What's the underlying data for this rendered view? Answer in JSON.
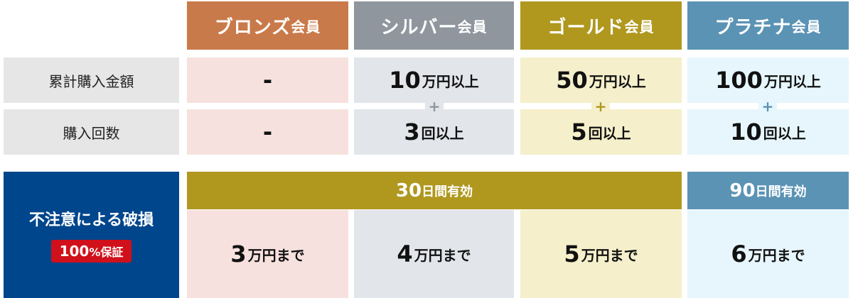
{
  "tiers": [
    {
      "name": "ブロンズ",
      "suffix": "会員",
      "header_color": "#C97A4A",
      "bg": "#F7E1DE",
      "amount_num": "-",
      "amount_unit": "",
      "count_num": "-",
      "count_unit": "",
      "limit_num": "3",
      "limit_unit": "万円まで"
    },
    {
      "name": "シルバー",
      "suffix": "会員",
      "header_color": "#8F969E",
      "bg": "#E2E5EA",
      "amount_num": "10",
      "amount_unit": "万円以上",
      "count_num": "3",
      "count_unit": "回以上",
      "limit_num": "4",
      "limit_unit": "万円まで",
      "plus_color": "#8F969E"
    },
    {
      "name": "ゴールド",
      "suffix": "会員",
      "header_color": "#B0981F",
      "bg": "#F5EFCB",
      "amount_num": "50",
      "amount_unit": "万円以上",
      "count_num": "5",
      "count_unit": "回以上",
      "limit_num": "5",
      "limit_unit": "万円まで",
      "plus_color": "#B0981F"
    },
    {
      "name": "プラチナ",
      "suffix": "会員",
      "header_color": "#5B93B5",
      "bg": "#E6F6FC",
      "amount_num": "100",
      "amount_unit": "万円以上",
      "count_num": "10",
      "count_unit": "回以上",
      "limit_num": "6",
      "limit_unit": "万円まで",
      "plus_color": "#5B93B5"
    }
  ],
  "plus": "+",
  "rows": {
    "amount": "累計購入金額",
    "count": "購入回数"
  },
  "guarantee": {
    "title": "不注意による破損",
    "badge_num": "100",
    "badge_unit": "%保証",
    "bg": "#00468C",
    "badge_color": "#D0101B"
  },
  "validity": [
    {
      "num": "30",
      "unit": "日間有効",
      "color": "#B0981F"
    },
    {
      "num": "90",
      "unit": "日間有効",
      "color": "#5B93B5"
    }
  ]
}
